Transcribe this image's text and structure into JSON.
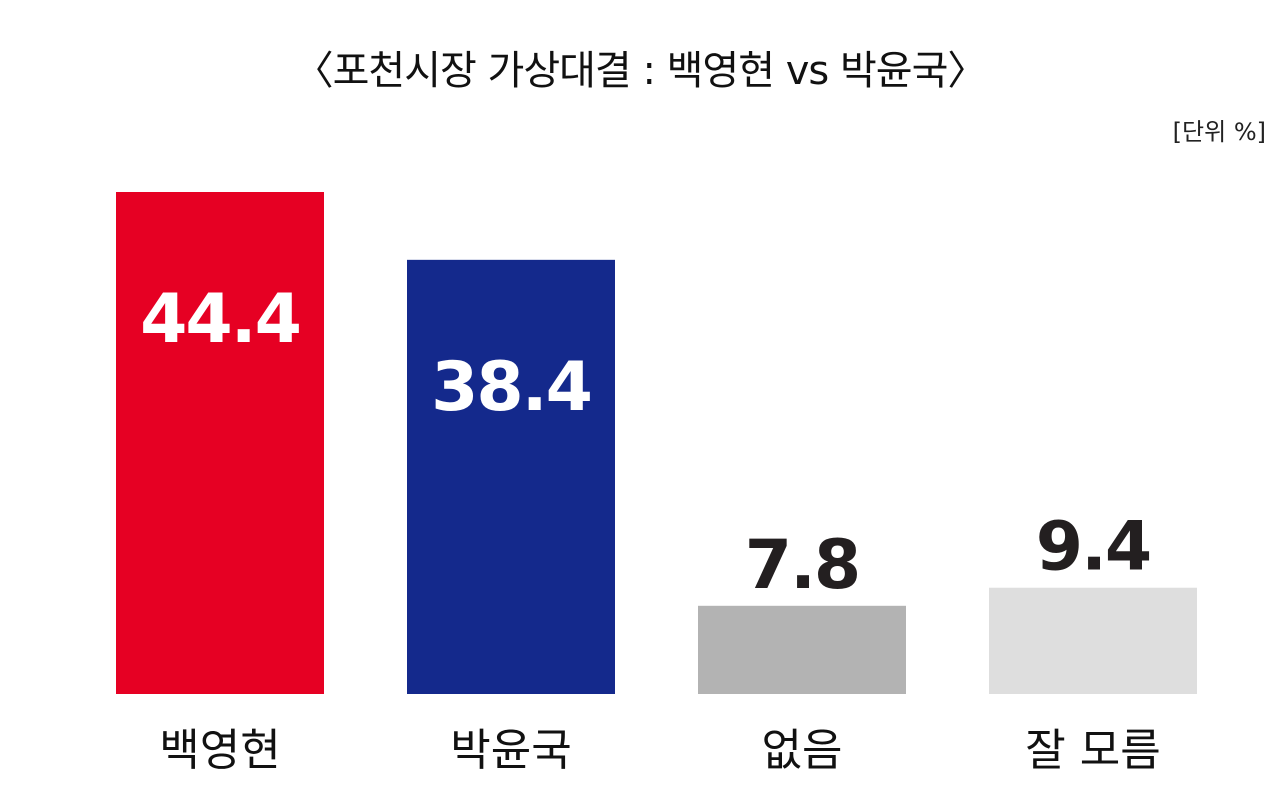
{
  "title": "〈포천시장 가상대결 : 백영현 vs 박윤국〉",
  "unit": "[단위 %]",
  "chart_data": {
    "type": "bar",
    "title": "〈포천시장 가상대결 : 백영현 vs 박윤국〉",
    "categories": [
      "백영현",
      "박윤국",
      "없음",
      "잘 모름"
    ],
    "values": [
      44.4,
      38.4,
      7.8,
      9.4
    ],
    "value_labels": [
      "44.4",
      "38.4",
      "7.8",
      "9.4"
    ],
    "colors": [
      "#e60023",
      "#14298c",
      "#b3b3b3",
      "#dedede"
    ],
    "label_colors": [
      "#ffffff",
      "#ffffff",
      "#231f20",
      "#231f20"
    ],
    "unit": "%",
    "grid": false,
    "legend": "none"
  }
}
